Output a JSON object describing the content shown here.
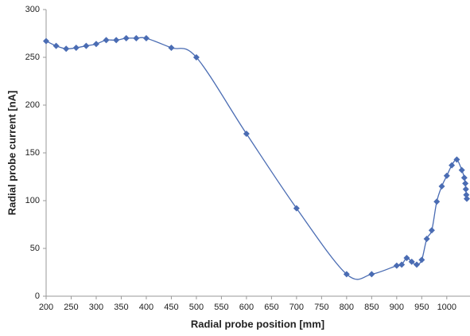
{
  "chart_data": {
    "type": "line",
    "x_label": "Radial probe position [mm]",
    "y_label": "Radial probe current [nA]",
    "xlim": [
      200,
      1040
    ],
    "ylim": [
      0,
      300
    ],
    "xticks": [
      200,
      250,
      300,
      350,
      400,
      450,
      500,
      550,
      600,
      650,
      700,
      750,
      800,
      850,
      900,
      950,
      1000
    ],
    "yticks": [
      0,
      50,
      100,
      150,
      200,
      250,
      300
    ],
    "grid": false,
    "series": [
      {
        "name": "Radial probe current",
        "color": "#4a6cb3",
        "x": [
          200,
          220,
          240,
          260,
          280,
          300,
          320,
          340,
          360,
          380,
          400,
          450,
          500,
          600,
          700,
          800,
          850,
          900,
          910,
          920,
          930,
          940,
          950,
          960,
          970,
          980,
          990,
          1000,
          1010,
          1020,
          1030,
          1035,
          1037,
          1038,
          1039,
          1040
        ],
        "values": [
          267,
          262,
          259,
          260,
          262,
          264,
          268,
          268,
          270,
          270,
          270,
          260,
          250,
          170,
          92,
          23,
          23,
          32,
          33,
          40,
          36,
          33,
          38,
          60,
          69,
          99,
          115,
          126,
          137,
          143,
          132,
          124,
          118,
          112,
          106,
          102
        ]
      }
    ]
  }
}
